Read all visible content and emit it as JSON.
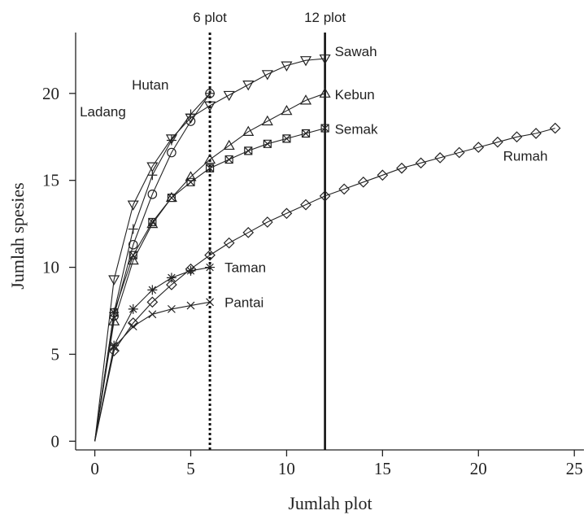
{
  "chart_data": {
    "type": "line",
    "xlabel": "Jumlah plot",
    "ylabel": "Jumlah spesies",
    "xlim": [
      -1,
      25.5
    ],
    "ylim": [
      -0.5,
      23.5
    ],
    "xticks": [
      0,
      5,
      10,
      15,
      20,
      25
    ],
    "yticks": [
      0,
      5,
      10,
      15,
      20
    ],
    "grid": false,
    "legend": "none",
    "reference_lines": [
      {
        "x": 6,
        "label": "6 plot",
        "style": "dotted"
      },
      {
        "x": 12,
        "label": "12 plot",
        "style": "solid"
      }
    ],
    "series": [
      {
        "name": "Hutan",
        "marker": "circle",
        "x": [
          0,
          1,
          2,
          3,
          4,
          5,
          6
        ],
        "y": [
          0,
          7.2,
          11.3,
          14.2,
          16.6,
          18.4,
          20.0
        ]
      },
      {
        "name": "Ladang",
        "marker": "plus",
        "x": [
          0,
          1,
          2,
          3,
          4,
          5,
          6
        ],
        "y": [
          0,
          7.4,
          12.2,
          15.3,
          17.3,
          18.8,
          20.0
        ]
      },
      {
        "name": "Sawah",
        "marker": "triangle-down",
        "x": [
          0,
          1,
          2,
          3,
          4,
          5,
          6,
          7,
          8,
          9,
          10,
          11,
          12
        ],
        "y": [
          0,
          9.3,
          13.6,
          15.8,
          17.4,
          18.6,
          19.3,
          19.9,
          20.5,
          21.1,
          21.6,
          21.9,
          22.0
        ]
      },
      {
        "name": "Kebun",
        "marker": "triangle-up",
        "x": [
          0,
          1,
          2,
          3,
          4,
          5,
          6,
          7,
          8,
          9,
          10,
          11,
          12
        ],
        "y": [
          0,
          6.9,
          10.4,
          12.5,
          14.0,
          15.2,
          16.2,
          17.0,
          17.8,
          18.4,
          19.0,
          19.6,
          20.0
        ]
      },
      {
        "name": "Semak",
        "marker": "boxed-x",
        "x": [
          0,
          1,
          2,
          3,
          4,
          5,
          6,
          7,
          8,
          9,
          10,
          11,
          12
        ],
        "y": [
          0,
          7.4,
          10.7,
          12.6,
          14.0,
          14.9,
          15.7,
          16.2,
          16.7,
          17.1,
          17.4,
          17.7,
          18.0
        ]
      },
      {
        "name": "Rumah",
        "marker": "diamond",
        "x": [
          0,
          1,
          2,
          3,
          4,
          5,
          6,
          7,
          8,
          9,
          10,
          11,
          12,
          13,
          14,
          15,
          16,
          17,
          18,
          19,
          20,
          21,
          22,
          23,
          24
        ],
        "y": [
          0,
          5.2,
          6.8,
          8.0,
          9.0,
          9.9,
          10.7,
          11.4,
          12.0,
          12.6,
          13.1,
          13.6,
          14.1,
          14.5,
          14.9,
          15.3,
          15.7,
          16.0,
          16.3,
          16.6,
          16.9,
          17.2,
          17.5,
          17.7,
          18.0
        ]
      },
      {
        "name": "Taman",
        "marker": "asterisk",
        "x": [
          0,
          1,
          2,
          3,
          4,
          5,
          6
        ],
        "y": [
          0,
          5.5,
          7.6,
          8.7,
          9.4,
          9.8,
          10.0
        ]
      },
      {
        "name": "Pantai",
        "marker": "cross",
        "x": [
          0,
          1,
          2,
          3,
          4,
          5,
          6
        ],
        "y": [
          0,
          5.4,
          6.6,
          7.3,
          7.6,
          7.8,
          8.0
        ]
      }
    ]
  }
}
